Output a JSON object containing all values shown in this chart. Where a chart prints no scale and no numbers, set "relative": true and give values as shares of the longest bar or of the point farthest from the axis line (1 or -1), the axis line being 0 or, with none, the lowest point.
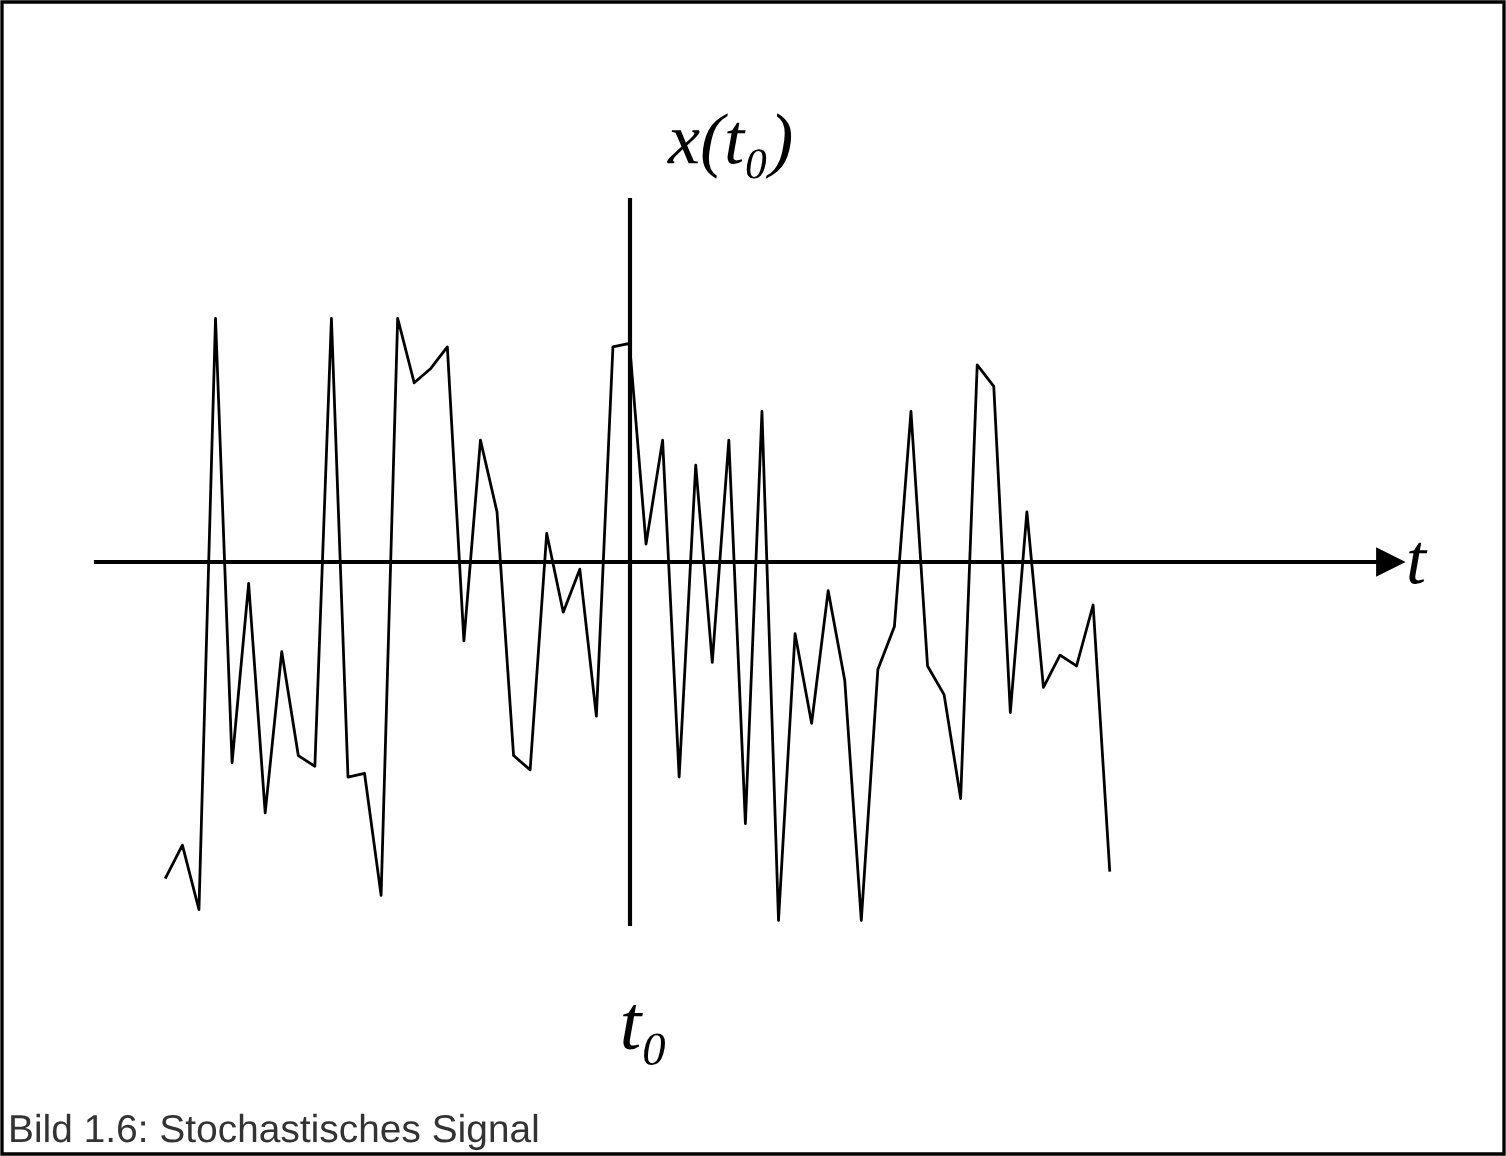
{
  "chart_data": {
    "type": "line",
    "relative": true,
    "categories": [
      null,
      null,
      null,
      null,
      null,
      null,
      null,
      null,
      null,
      null,
      null,
      null,
      null,
      null,
      null,
      null,
      null,
      null,
      null,
      null,
      null,
      null,
      null,
      null,
      null,
      null,
      null,
      null,
      null,
      null,
      null,
      null,
      null,
      null,
      null,
      null,
      null,
      null,
      null,
      null,
      null,
      null,
      null,
      null,
      null,
      null,
      null,
      null,
      null,
      null,
      null,
      null,
      null,
      null,
      null,
      null,
      null,
      null
    ],
    "series": [
      {
        "color": "#000000",
        "values": [
          -0.88,
          -0.79,
          -0.97,
          0.68,
          -0.56,
          -0.06,
          -0.7,
          -0.25,
          -0.54,
          -0.57,
          0.68,
          -0.6,
          -0.59,
          -0.93,
          0.68,
          0.5,
          0.54,
          0.6,
          -0.22,
          0.34,
          0.14,
          -0.54,
          -0.58,
          0.08,
          -0.14,
          -0.02,
          -0.43,
          0.6,
          0.61,
          0.05,
          0.34,
          -0.6,
          0.27,
          -0.28,
          0.34,
          -0.73,
          0.42,
          -1,
          -0.2,
          -0.45,
          -0.08,
          -0.33,
          -1,
          -0.3,
          -0.18,
          0.42,
          -0.29,
          -0.37,
          -0.66,
          0.55,
          0.49,
          -0.42,
          0.14,
          -0.35,
          -0.26,
          -0.29,
          -0.12,
          -0.86
        ]
      }
    ],
    "ylabel": "x(t₀)",
    "xlabel": "t",
    "annotations": [
      "t₀",
      "Bild 1.6: Stochastisches Signal"
    ],
    "marker": "none",
    "line_style": "solid",
    "legend": false
  }
}
